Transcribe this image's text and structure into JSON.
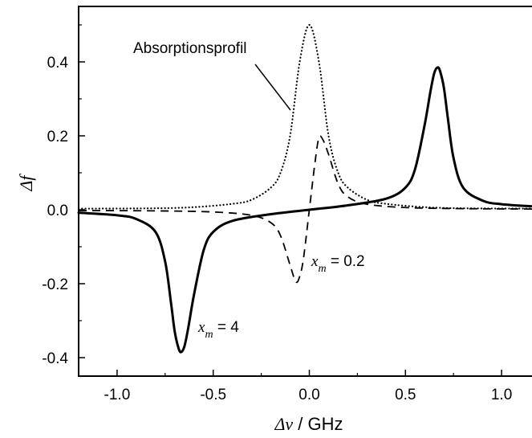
{
  "chart_data": {
    "type": "line",
    "xlabel_symbol": "Δν",
    "xlabel_unit": " / GHz",
    "ylabel": "Δf",
    "xlim": [
      -1.2,
      1.2
    ],
    "ylim": [
      -0.45,
      0.55
    ],
    "x_ticks": [
      -1.0,
      -0.5,
      0.0,
      0.5,
      1.0
    ],
    "x_tick_labels": [
      "-1.0",
      "-0.5",
      "0.0",
      "0.5",
      "1.0"
    ],
    "y_ticks": [
      -0.4,
      -0.2,
      0.0,
      0.2,
      0.4
    ],
    "y_tick_labels": [
      "-0.4",
      "-0.2",
      "0.0",
      "0.2",
      "0.4"
    ],
    "grid": false,
    "legend": "none",
    "series": [
      {
        "style": "dotted",
        "x": [
          -1.2,
          -0.8,
          -0.6,
          -0.4,
          -0.3,
          -0.2,
          -0.15,
          -0.1,
          -0.05,
          0.0,
          0.05,
          0.1,
          0.15,
          0.2,
          0.3,
          0.4,
          0.6,
          0.8,
          1.2
        ],
        "y": [
          0.003,
          0.004,
          0.007,
          0.016,
          0.027,
          0.06,
          0.1,
          0.2,
          0.4,
          0.5,
          0.4,
          0.2,
          0.1,
          0.06,
          0.027,
          0.016,
          0.007,
          0.004,
          0.003
        ]
      },
      {
        "style": "dashed",
        "x": [
          -1.2,
          -0.8,
          -0.5,
          -0.3,
          -0.2,
          -0.15,
          -0.1,
          -0.07,
          -0.05,
          -0.03,
          0.0,
          0.03,
          0.05,
          0.07,
          0.1,
          0.15,
          0.2,
          0.3,
          0.5,
          0.8,
          1.2
        ],
        "y": [
          -0.002,
          -0.003,
          -0.006,
          -0.015,
          -0.035,
          -0.07,
          -0.15,
          -0.195,
          -0.18,
          -0.13,
          0.0,
          0.13,
          0.195,
          0.19,
          0.15,
          0.07,
          0.035,
          0.015,
          0.006,
          0.003,
          0.002
        ]
      },
      {
        "style": "solid",
        "x": [
          -1.2,
          -1.0,
          -0.9,
          -0.8,
          -0.75,
          -0.72,
          -0.7,
          -0.68,
          -0.667,
          -0.65,
          -0.63,
          -0.6,
          -0.55,
          -0.5,
          -0.4,
          -0.2,
          0.0,
          0.2,
          0.4,
          0.5,
          0.55,
          0.6,
          0.63,
          0.65,
          0.667,
          0.68,
          0.7,
          0.72,
          0.75,
          0.8,
          0.9,
          1.0,
          1.2
        ],
        "y": [
          -0.008,
          -0.015,
          -0.025,
          -0.06,
          -0.14,
          -0.25,
          -0.33,
          -0.375,
          -0.385,
          -0.37,
          -0.32,
          -0.23,
          -0.11,
          -0.06,
          -0.03,
          -0.012,
          0.0,
          0.012,
          0.03,
          0.06,
          0.11,
          0.23,
          0.32,
          0.37,
          0.385,
          0.375,
          0.33,
          0.25,
          0.14,
          0.06,
          0.025,
          0.015,
          0.008
        ]
      }
    ],
    "annotations": {
      "absorption_label": "Absorptionsprofil",
      "xm_small": {
        "var": "x",
        "sub": "m",
        "value": " = 0.2"
      },
      "xm_large": {
        "var": "x",
        "sub": "m",
        "value": " = 4"
      }
    }
  }
}
